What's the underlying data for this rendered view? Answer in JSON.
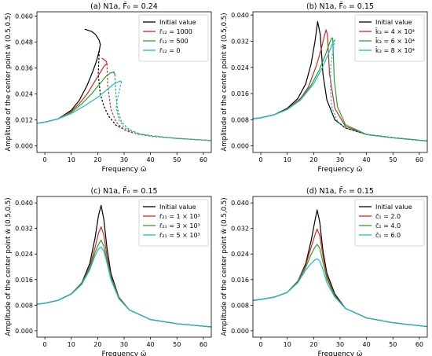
{
  "chart_data": [
    {
      "type": "line",
      "title": "(a) N1a, F̄₀ = 0.24",
      "xlabel": "Frequency ω̄",
      "ylabel": "Amplitude of the center point w̄ (0.5,0.5)",
      "xlim": [
        -3,
        63
      ],
      "ylim": [
        -0.003,
        0.062
      ],
      "xticks": [
        0,
        10,
        20,
        30,
        40,
        50,
        60
      ],
      "yticks": [
        0.0,
        0.012,
        0.024,
        0.036,
        0.048,
        0.06
      ],
      "ytick_labels": [
        "0.000",
        "0.012",
        "0.024",
        "0.036",
        "0.048",
        "0.060"
      ],
      "legend_position": "top-right",
      "series": [
        {
          "name": "Initial value",
          "color": "#000000",
          "x": [
            -3,
            0,
            5,
            10,
            13,
            16,
            18,
            19.5,
            20.6,
            21,
            20.5,
            19.2,
            17.6,
            16.2,
            15.1
          ],
          "y": [
            0.0105,
            0.011,
            0.0125,
            0.0165,
            0.021,
            0.028,
            0.034,
            0.039,
            0.044,
            0.047,
            0.049,
            0.0515,
            0.053,
            0.0535,
            0.054
          ],
          "dashed": {
            "x": [
              20.6,
              20.2,
              21,
              22.2,
              24,
              27,
              32,
              40,
              50,
              63
            ],
            "y": [
              0.044,
              0.033,
              0.024,
              0.019,
              0.014,
              0.0095,
              0.0065,
              0.0045,
              0.0035,
              0.0025
            ]
          }
        },
        {
          "name": "r̄₁₂ = 1000",
          "color": "#d62728",
          "x": [
            -3,
            0,
            5,
            10,
            13,
            16,
            18,
            20,
            21.5,
            22.5,
            23.5,
            23.3,
            22.5,
            22,
            21.5
          ],
          "y": [
            0.0105,
            0.011,
            0.0125,
            0.016,
            0.0195,
            0.024,
            0.028,
            0.032,
            0.035,
            0.037,
            0.038,
            0.039,
            0.0398,
            0.0403,
            0.0405
          ],
          "dashed": {
            "x": [
              23.5,
              23.8,
              25,
              27,
              30,
              35,
              40,
              50,
              63
            ],
            "y": [
              0.038,
              0.028,
              0.017,
              0.011,
              0.0075,
              0.0055,
              0.0045,
              0.0035,
              0.0025
            ]
          }
        },
        {
          "name": "r̄₁₂ = 500",
          "color": "#2ca02c",
          "x": [
            -3,
            0,
            5,
            10,
            14,
            18,
            21,
            23,
            24.5,
            25.5,
            26.2,
            26.5,
            26
          ],
          "y": [
            0.0105,
            0.011,
            0.0125,
            0.0155,
            0.0195,
            0.0245,
            0.029,
            0.032,
            0.0335,
            0.034,
            0.034,
            0.033,
            0.0345
          ],
          "dashed": {
            "x": [
              26.5,
              26.8,
              27.5,
              29,
              32,
              36,
              42,
              50,
              63
            ],
            "y": [
              0.033,
              0.025,
              0.017,
              0.011,
              0.0075,
              0.0055,
              0.0045,
              0.0035,
              0.0025
            ]
          }
        },
        {
          "name": "r̄₁₂ = 0",
          "color": "#17becf",
          "x": [
            -3,
            0,
            5,
            10,
            15,
            20,
            24,
            26,
            27.5,
            28.5,
            29
          ],
          "y": [
            0.0105,
            0.011,
            0.0125,
            0.015,
            0.0185,
            0.0225,
            0.0265,
            0.0285,
            0.0295,
            0.03,
            0.0298
          ],
          "dashed": {
            "x": [
              29,
              28.3,
              27.5,
              27,
              28,
              30,
              34,
              40,
              50,
              63
            ],
            "y": [
              0.0298,
              0.026,
              0.022,
              0.018,
              0.012,
              0.0085,
              0.006,
              0.0045,
              0.0035,
              0.0025
            ]
          }
        }
      ]
    },
    {
      "type": "line",
      "title": "(b) N1a, F̄₀ = 0.15",
      "xlabel": "Frequency ω̄",
      "ylabel": "Amplitude of the center point w̄ (0.5,0.5)",
      "xlim": [
        -3,
        63
      ],
      "ylim": [
        -0.002,
        0.041
      ],
      "xticks": [
        0,
        10,
        20,
        30,
        40,
        50,
        60
      ],
      "yticks": [
        0.0,
        0.008,
        0.016,
        0.024,
        0.032,
        0.04
      ],
      "ytick_labels": [
        "0.000",
        "0.008",
        "0.016",
        "0.024",
        "0.032",
        "0.040"
      ],
      "legend_position": "top-right",
      "series": [
        {
          "name": "Initial value",
          "color": "#000000",
          "x": [
            -3,
            0,
            5,
            10,
            14,
            17,
            19,
            20.5,
            21.5,
            22.5,
            23.5,
            25,
            28,
            32,
            40,
            50,
            63
          ],
          "y": [
            0.0083,
            0.0086,
            0.0095,
            0.0115,
            0.0145,
            0.019,
            0.025,
            0.032,
            0.038,
            0.034,
            0.022,
            0.014,
            0.008,
            0.0055,
            0.0035,
            0.0025,
            0.0015
          ]
        },
        {
          "name": "k̄₃ = 4 × 10⁴",
          "color": "#d62728",
          "x": [
            -3,
            0,
            5,
            10,
            15,
            18,
            21,
            23,
            24,
            24.7,
            25.2,
            26,
            28,
            32,
            40,
            50,
            63
          ],
          "y": [
            0.0083,
            0.0086,
            0.0095,
            0.0113,
            0.0145,
            0.018,
            0.0245,
            0.03,
            0.0335,
            0.0355,
            0.034,
            0.022,
            0.0115,
            0.006,
            0.0035,
            0.0025,
            0.0015
          ]
        },
        {
          "name": "k̄₃ = 6 × 10⁴",
          "color": "#2ca02c",
          "x": [
            -3,
            0,
            5,
            10,
            15,
            19,
            22,
            24.5,
            26,
            26.8,
            27.2,
            27.8,
            29,
            32,
            40,
            50,
            63
          ],
          "y": [
            0.0083,
            0.0086,
            0.0095,
            0.0112,
            0.0142,
            0.0185,
            0.023,
            0.028,
            0.0315,
            0.033,
            0.033,
            0.02,
            0.012,
            0.0065,
            0.0035,
            0.0025,
            0.0015
          ]
        },
        {
          "name": "k̄₃ = 8 × 10⁴",
          "color": "#17becf",
          "x": [
            -3,
            0,
            5,
            10,
            15,
            20,
            23,
            25.5,
            27,
            28
          ],
          "y": [
            0.0083,
            0.0086,
            0.0095,
            0.0111,
            0.014,
            0.019,
            0.0235,
            0.028,
            0.031,
            0.0325
          ],
          "dashed": {
            "x": [
              28,
              27.5,
              26.5,
              26.3,
              27,
              29,
              32,
              40,
              50,
              63
            ],
            "y": [
              0.0325,
              0.03,
              0.025,
              0.018,
              0.0115,
              0.0075,
              0.0055,
              0.0035,
              0.0025,
              0.0015
            ]
          }
        }
      ]
    },
    {
      "type": "line",
      "title": "(c) N1a, F̄₀ = 0.15",
      "xlabel": "Frequency ω̄",
      "ylabel": "Amplitude of the center point w̄ (0.5,0.5)",
      "xlim": [
        -3,
        63
      ],
      "ylim": [
        -0.002,
        0.042
      ],
      "xticks": [
        0,
        10,
        20,
        30,
        40,
        50,
        60
      ],
      "yticks": [
        0.0,
        0.008,
        0.016,
        0.024,
        0.032,
        0.04
      ],
      "ytick_labels": [
        "0.000",
        "0.008",
        "0.016",
        "0.024",
        "0.032",
        "0.040"
      ],
      "legend_position": "top-right",
      "series": [
        {
          "name": "Initial value",
          "color": "#000000",
          "x": [
            -3,
            0,
            5,
            10,
            14,
            17,
            19,
            20.3,
            21.3,
            22.3,
            23.5,
            25,
            28,
            32,
            40,
            50,
            63
          ],
          "y": [
            0.0083,
            0.0086,
            0.0095,
            0.0115,
            0.015,
            0.021,
            0.029,
            0.036,
            0.0392,
            0.035,
            0.026,
            0.018,
            0.0105,
            0.0065,
            0.0035,
            0.0022,
            0.0012
          ]
        },
        {
          "name": "r̄₂₁ = 1 × 10³",
          "color": "#d62728",
          "x": [
            -3,
            0,
            5,
            10,
            14,
            17,
            19,
            20.3,
            21.3,
            22.3,
            23.5,
            25,
            28,
            32,
            40,
            50,
            63
          ],
          "y": [
            0.0083,
            0.0086,
            0.0095,
            0.0115,
            0.015,
            0.02,
            0.026,
            0.0305,
            0.0325,
            0.03,
            0.0235,
            0.017,
            0.0105,
            0.0065,
            0.0035,
            0.0022,
            0.0012
          ]
        },
        {
          "name": "r̄₂₁ = 3 × 10³",
          "color": "#2ca02c",
          "x": [
            -3,
            0,
            5,
            10,
            14,
            17,
            19,
            20.3,
            21.3,
            22.3,
            23.5,
            25,
            28,
            32,
            40,
            50,
            63
          ],
          "y": [
            0.0083,
            0.0086,
            0.0095,
            0.0115,
            0.0148,
            0.0195,
            0.0245,
            0.027,
            0.0283,
            0.0265,
            0.022,
            0.0165,
            0.0102,
            0.0065,
            0.0035,
            0.0022,
            0.0012
          ]
        },
        {
          "name": "r̄₂₁ = 5 × 10³",
          "color": "#17becf",
          "x": [
            -3,
            0,
            5,
            10,
            14,
            17,
            19,
            20.3,
            21.3,
            22.3,
            23.5,
            25,
            28,
            32,
            40,
            50,
            63
          ],
          "y": [
            0.0083,
            0.0086,
            0.0095,
            0.0114,
            0.0145,
            0.019,
            0.0235,
            0.0255,
            0.0262,
            0.025,
            0.0212,
            0.016,
            0.01,
            0.0065,
            0.0035,
            0.0022,
            0.0012
          ]
        }
      ]
    },
    {
      "type": "line",
      "title": "(d) N1a, F̄₀ = 0.15",
      "xlabel": "Frequency ω̄",
      "ylabel": "Amplitude of the center point w̄ (0.5,0.5)",
      "xlim": [
        -3,
        63
      ],
      "ylim": [
        -0.002,
        0.042
      ],
      "xticks": [
        0,
        10,
        20,
        30,
        40,
        50,
        60
      ],
      "yticks": [
        0.0,
        0.008,
        0.016,
        0.024,
        0.032,
        0.04
      ],
      "ytick_labels": [
        "0.000",
        "0.008",
        "0.016",
        "0.024",
        "0.032",
        "0.040"
      ],
      "legend_position": "top-right",
      "series": [
        {
          "name": "Initial value",
          "color": "#000000",
          "x": [
            -3,
            0,
            5,
            10,
            14,
            17,
            19,
            20.5,
            21.3,
            22.3,
            23.5,
            25,
            28,
            32,
            40,
            50,
            63
          ],
          "y": [
            0.0095,
            0.0098,
            0.0105,
            0.012,
            0.0155,
            0.021,
            0.028,
            0.0345,
            0.0378,
            0.034,
            0.025,
            0.018,
            0.0115,
            0.007,
            0.004,
            0.0025,
            0.0013
          ]
        },
        {
          "name": "c̄₁ = 2.0",
          "color": "#d62728",
          "x": [
            -3,
            0,
            5,
            10,
            14,
            17,
            19,
            20.5,
            21.3,
            22.3,
            23.5,
            25,
            28,
            32,
            40,
            50,
            63
          ],
          "y": [
            0.0095,
            0.0098,
            0.0105,
            0.012,
            0.0155,
            0.0205,
            0.026,
            0.03,
            0.0318,
            0.0298,
            0.0235,
            0.017,
            0.011,
            0.007,
            0.004,
            0.0025,
            0.0013
          ]
        },
        {
          "name": "c̄₁ = 4.0",
          "color": "#2ca02c",
          "x": [
            -3,
            0,
            5,
            10,
            14,
            17,
            19,
            20.5,
            21.3,
            22.3,
            23.5,
            25,
            28,
            32,
            40,
            50,
            63
          ],
          "y": [
            0.0095,
            0.0098,
            0.0105,
            0.012,
            0.0153,
            0.0198,
            0.0238,
            0.0262,
            0.027,
            0.0258,
            0.0215,
            0.0162,
            0.0108,
            0.007,
            0.004,
            0.0025,
            0.0013
          ]
        },
        {
          "name": "c̄₁ = 6.0",
          "color": "#17becf",
          "x": [
            -3,
            0,
            5,
            10,
            14,
            17,
            19,
            20.5,
            21.3,
            22.3,
            23.5,
            25,
            28,
            32,
            40,
            50,
            63
          ],
          "y": [
            0.0095,
            0.0098,
            0.0105,
            0.012,
            0.015,
            0.019,
            0.021,
            0.0222,
            0.0225,
            0.0218,
            0.0192,
            0.015,
            0.0105,
            0.007,
            0.004,
            0.0025,
            0.0013
          ]
        }
      ]
    }
  ]
}
